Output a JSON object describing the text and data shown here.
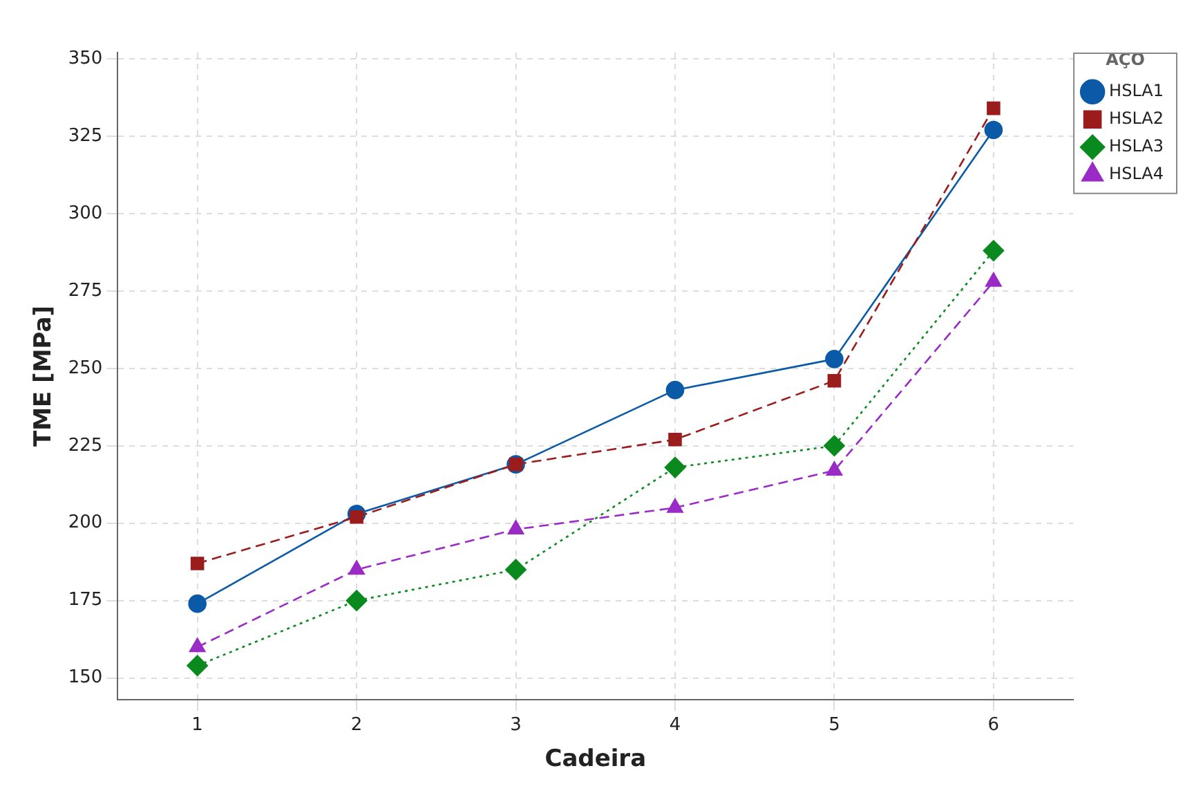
{
  "chart_data": {
    "type": "line",
    "xlabel": "Cadeira",
    "ylabel": "TME [MPa]",
    "legend_title": "AÇO",
    "categories": [
      "1",
      "2",
      "3",
      "4",
      "5",
      "6"
    ],
    "series": [
      {
        "name": "HSLA1",
        "color": "#0b5aa8",
        "marker": "circle",
        "line_style": "solid",
        "values": [
          174,
          203,
          219,
          243,
          253,
          327
        ]
      },
      {
        "name": "HSLA2",
        "color": "#9b1c1c",
        "marker": "square",
        "line_style": "dashed",
        "values": [
          187,
          202,
          219,
          227,
          246,
          334
        ]
      },
      {
        "name": "HSLA3",
        "color": "#0a8a1e",
        "marker": "diamond",
        "line_style": "dotted",
        "values": [
          154,
          175,
          185,
          218,
          225,
          288
        ]
      },
      {
        "name": "HSLA4",
        "color": "#9a2bc6",
        "marker": "triangle",
        "line_style": "dashed",
        "values": [
          160,
          185,
          198,
          205,
          217,
          278
        ]
      }
    ],
    "ylim": [
      143,
      352
    ],
    "yticks": [
      150,
      175,
      200,
      225,
      250,
      275,
      300,
      325,
      350
    ],
    "grid": true,
    "legend": "top right"
  }
}
